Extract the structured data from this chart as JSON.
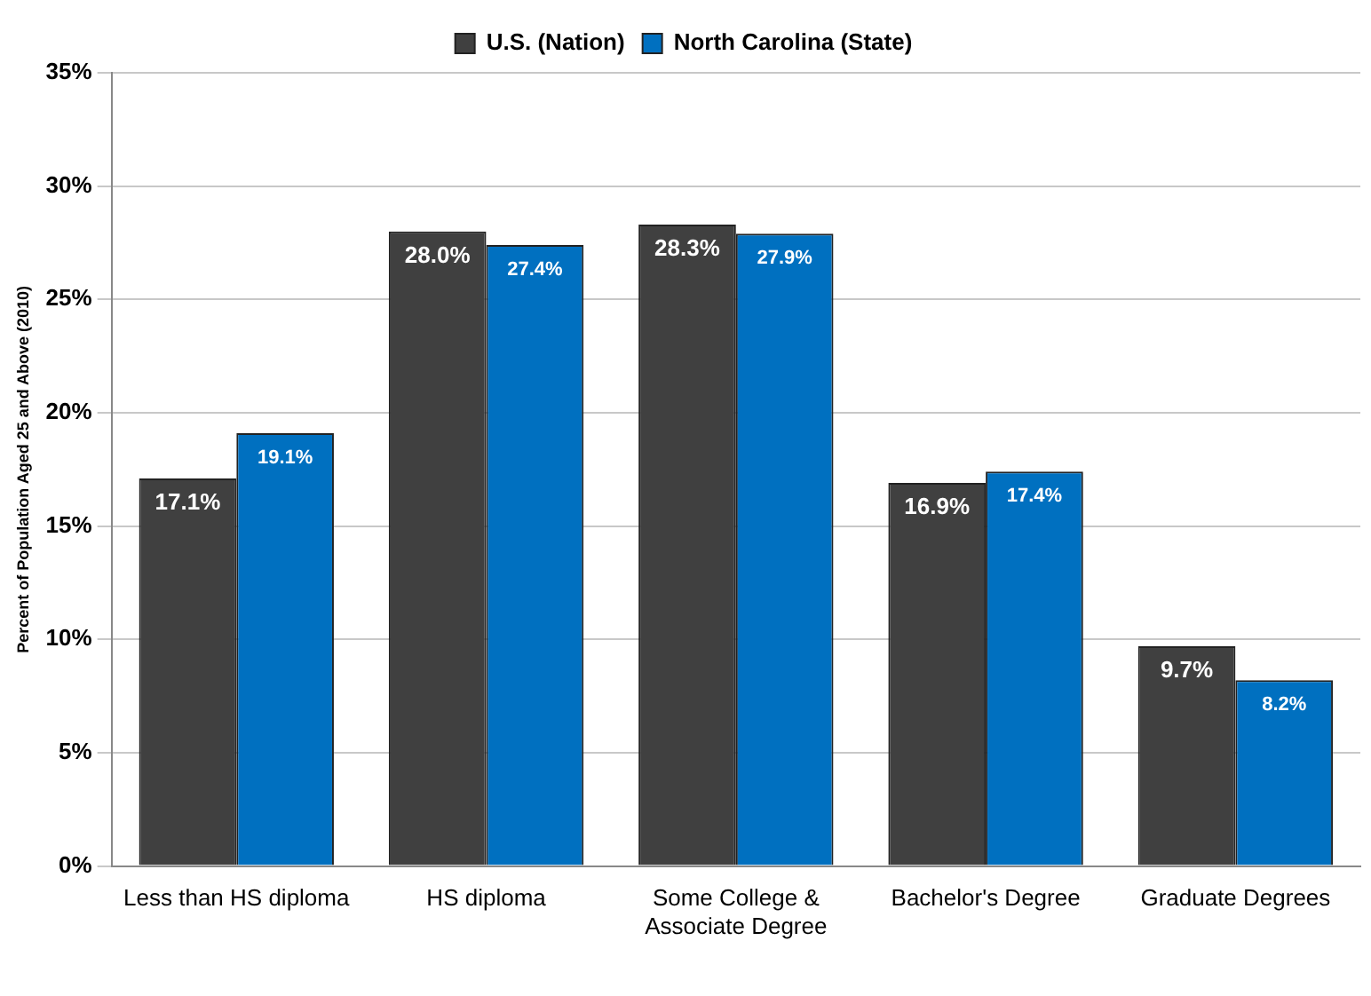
{
  "chart_data": {
    "type": "bar",
    "ylabel": "Percent of Population Aged 25 and Above (2010)",
    "categories": [
      "Less than HS diploma",
      "HS diploma",
      "Some College & Associate Degree",
      "Bachelor's Degree",
      "Graduate Degrees"
    ],
    "series": [
      {
        "name": "U.S. (Nation)",
        "color": "#404040",
        "values": [
          17.1,
          28.0,
          28.3,
          16.9,
          9.7
        ],
        "value_labels": [
          "17.1%",
          "28.0%",
          "28.3%",
          "16.9%",
          "9.7%"
        ]
      },
      {
        "name": "North Carolina (State)",
        "color": "#0070c0",
        "values": [
          19.1,
          27.4,
          27.9,
          17.4,
          8.2
        ],
        "value_labels": [
          "19.1%",
          "27.4%",
          "27.9%",
          "17.4%",
          "8.2%"
        ]
      }
    ],
    "ylim": [
      0,
      35
    ],
    "yticks": [
      {
        "value": 0,
        "label": "0%"
      },
      {
        "value": 5,
        "label": "5%"
      },
      {
        "value": 10,
        "label": "10%"
      },
      {
        "value": 15,
        "label": "15%"
      },
      {
        "value": 20,
        "label": "20%"
      },
      {
        "value": 25,
        "label": "25%"
      },
      {
        "value": 30,
        "label": "30%"
      },
      {
        "value": 35,
        "label": "35%"
      }
    ],
    "grid": "y",
    "legend": "top"
  }
}
